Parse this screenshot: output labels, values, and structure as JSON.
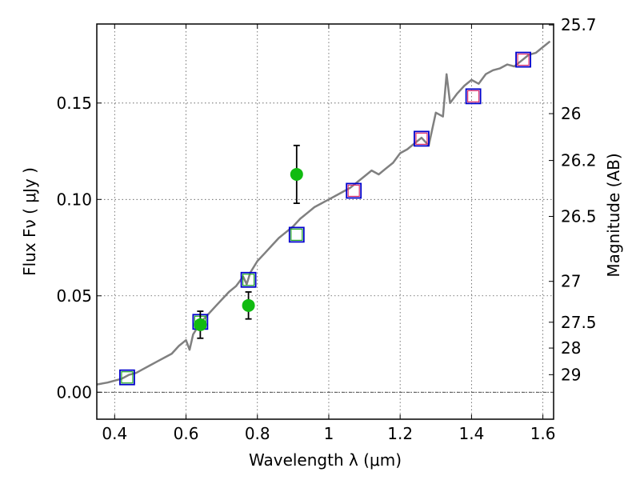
{
  "chart_data": {
    "type": "scatter",
    "xlabel": "Wavelength  λ (μm)",
    "ylabel": "Flux  Fν  ( μJy )",
    "y2label": "Magnitude (AB)",
    "xlim": [
      0.35,
      1.63
    ],
    "ylim": [
      -0.014,
      0.191
    ],
    "grid": true,
    "x_ticks": [
      0.4,
      0.6,
      0.8,
      1,
      1.2,
      1.4,
      1.6
    ],
    "x_tick_labels": [
      "0.4",
      "0.6",
      "0.8",
      "1",
      "1.2",
      "1.4",
      "1.6"
    ],
    "y_ticks": [
      0.0,
      0.05,
      0.1,
      0.15
    ],
    "y_tick_labels": [
      "0.00",
      "0.05",
      "0.10",
      "0.15"
    ],
    "y2_ticks": [
      {
        "label": "25.7",
        "flux": 0.1905
      },
      {
        "label": "26",
        "flux": 0.1445
      },
      {
        "label": "26.2",
        "flux": 0.1202
      },
      {
        "label": "26.5",
        "flux": 0.0912
      },
      {
        "label": "27",
        "flux": 0.0575
      },
      {
        "label": "27.5",
        "flux": 0.0363
      },
      {
        "label": "28",
        "flux": 0.0229
      },
      {
        "label": "29",
        "flux": 0.0091
      }
    ],
    "zero_line": 0.0,
    "colors": {
      "model": "#808080",
      "model_photometry": "#0000cc",
      "upper_marker": "#e0306a",
      "lower_marker": "#22aa22",
      "observed": "#11bb11",
      "errorbar": "#000000"
    },
    "series": [
      {
        "type": "line",
        "x": [
          0.35,
          0.38,
          0.4,
          0.42,
          0.44,
          0.46,
          0.48,
          0.5,
          0.52,
          0.54,
          0.56,
          0.58,
          0.6,
          0.61,
          0.62,
          0.63,
          0.64,
          0.65,
          0.66,
          0.68,
          0.7,
          0.72,
          0.74,
          0.76,
          0.77,
          0.78,
          0.8,
          0.82,
          0.84,
          0.86,
          0.88,
          0.9,
          0.92,
          0.94,
          0.96,
          0.98,
          1.0,
          1.02,
          1.04,
          1.06,
          1.08,
          1.1,
          1.12,
          1.14,
          1.16,
          1.18,
          1.2,
          1.22,
          1.24,
          1.26,
          1.28,
          1.3,
          1.32,
          1.33,
          1.34,
          1.36,
          1.38,
          1.4,
          1.42,
          1.44,
          1.46,
          1.48,
          1.5,
          1.52,
          1.54,
          1.56,
          1.58,
          1.6,
          1.62
        ],
        "y": [
          0.004,
          0.005,
          0.006,
          0.007,
          0.009,
          0.01,
          0.012,
          0.014,
          0.016,
          0.018,
          0.02,
          0.024,
          0.027,
          0.022,
          0.03,
          0.033,
          0.036,
          0.038,
          0.04,
          0.044,
          0.048,
          0.052,
          0.055,
          0.06,
          0.056,
          0.062,
          0.068,
          0.072,
          0.076,
          0.08,
          0.083,
          0.086,
          0.09,
          0.093,
          0.096,
          0.098,
          0.1,
          0.102,
          0.104,
          0.106,
          0.109,
          0.112,
          0.115,
          0.113,
          0.116,
          0.119,
          0.124,
          0.126,
          0.129,
          0.132,
          0.128,
          0.145,
          0.143,
          0.165,
          0.15,
          0.155,
          0.159,
          0.162,
          0.16,
          0.165,
          0.167,
          0.168,
          0.17,
          0.169,
          0.172,
          0.175,
          0.176,
          0.179,
          0.182
        ]
      },
      {
        "type": "square_markers",
        "x": [
          0.435,
          0.64,
          0.775,
          0.91,
          1.07,
          1.26,
          1.405,
          1.545
        ],
        "y": [
          0.0077,
          0.0365,
          0.0583,
          0.0817,
          0.1045,
          0.1315,
          0.1535,
          0.1725
        ]
      },
      {
        "type": "scatter_errorbar",
        "x": [
          0.64,
          0.775,
          0.91
        ],
        "y": [
          0.035,
          0.045,
          0.113
        ],
        "yerr": [
          0.007,
          0.007,
          0.015
        ]
      }
    ]
  }
}
